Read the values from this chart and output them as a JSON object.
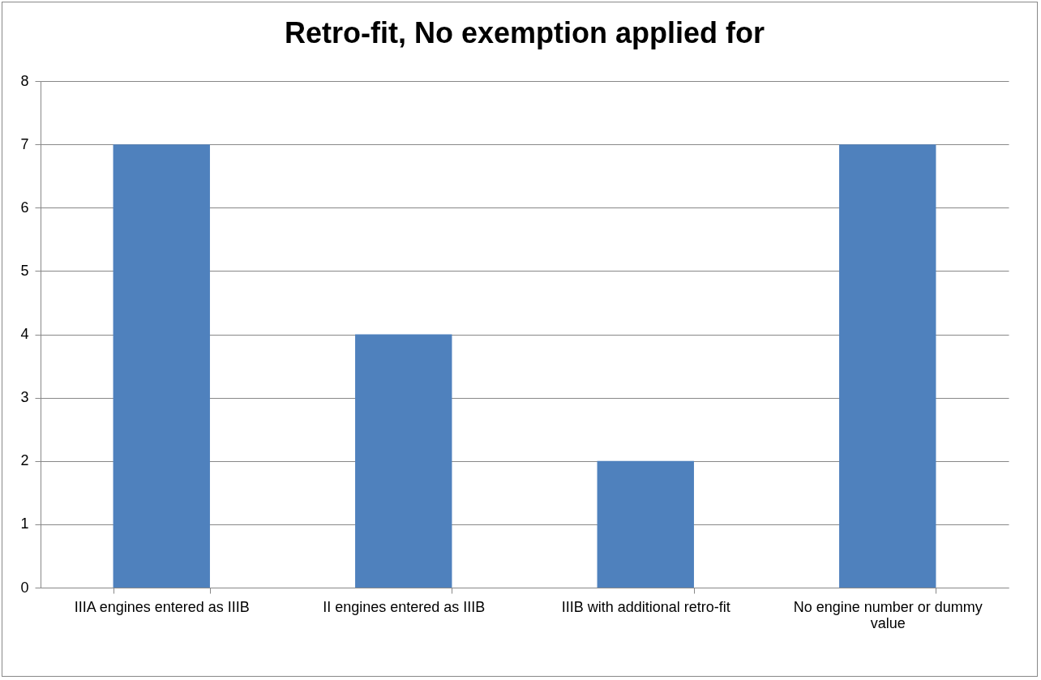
{
  "chart_data": {
    "type": "bar",
    "title": "Retro-fit, No exemption applied for",
    "categories": [
      "IIIA engines entered as IIIB",
      "II engines entered as IIIB",
      "IIIB with additional retro-fit",
      "No engine number or dummy value"
    ],
    "values": [
      7,
      4,
      2,
      7
    ],
    "color": "#4f81bd",
    "ylim": [
      0,
      8
    ],
    "yticks": [
      0,
      1,
      2,
      3,
      4,
      5,
      6,
      7,
      8
    ],
    "grid": "y"
  }
}
